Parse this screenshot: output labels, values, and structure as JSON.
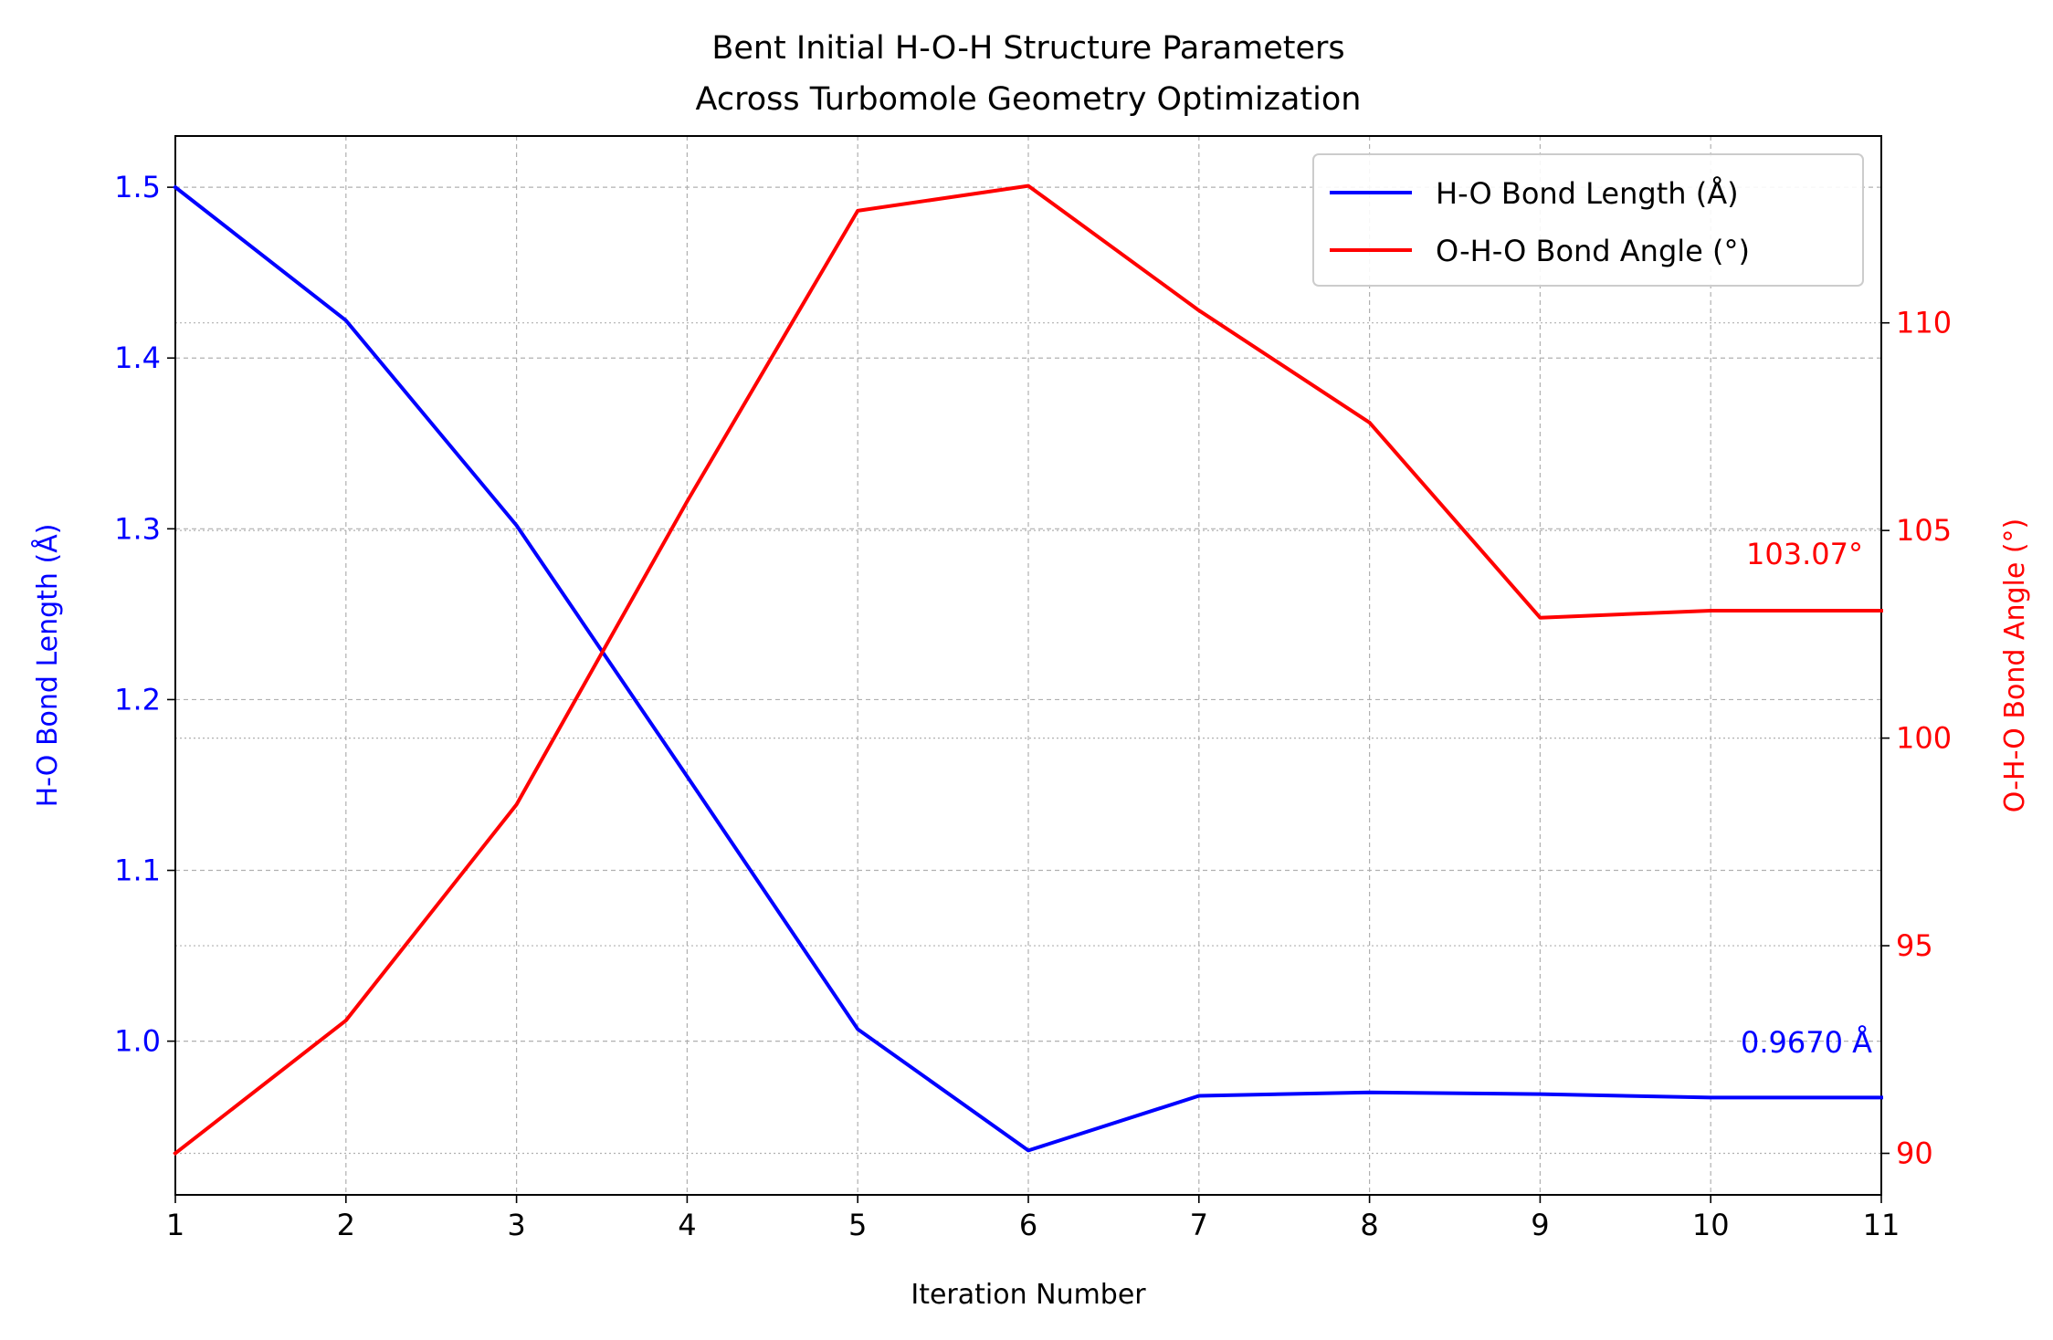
{
  "chart_data": {
    "type": "line",
    "title_line1": "Bent Initial H-O-H Structure Parameters",
    "title_line2": "Across Turbomole Geometry Optimization",
    "xlabel": "Iteration Number",
    "ylabel_left": "H-O Bond Length (Å)",
    "ylabel_right": "O-H-O Bond Angle (°)",
    "x": [
      1,
      2,
      3,
      4,
      5,
      6,
      7,
      8,
      9,
      10,
      11
    ],
    "xlim": [
      1,
      11
    ],
    "ylim_left": [
      0.91,
      1.53
    ],
    "ylim_right": [
      89,
      114.5
    ],
    "xticks": [
      "1",
      "2",
      "3",
      "4",
      "5",
      "6",
      "7",
      "8",
      "9",
      "10",
      "11"
    ],
    "yticks_left": [
      "1.0",
      "1.1",
      "1.2",
      "1.3",
      "1.4",
      "1.5"
    ],
    "yticks_right": [
      "90",
      "95",
      "100",
      "105",
      "110"
    ],
    "grid": true,
    "legend_position": "top-right",
    "series": [
      {
        "name": "H-O Bond Length (Å)",
        "axis": "left",
        "color": "#0000ff",
        "values": [
          1.5,
          1.422,
          1.302,
          1.155,
          1.007,
          0.936,
          0.968,
          0.97,
          0.969,
          0.967,
          0.967
        ]
      },
      {
        "name": "O-H-O Bond Angle (°)",
        "axis": "right",
        "color": "#ff0000",
        "values": [
          90.0,
          93.2,
          98.4,
          105.7,
          112.7,
          113.3,
          110.3,
          107.6,
          102.9,
          103.07,
          103.07
        ]
      }
    ],
    "annotations": [
      {
        "text": "0.9670 Å",
        "color": "#0000ff"
      },
      {
        "text": "103.07°",
        "color": "#ff0000"
      }
    ]
  }
}
